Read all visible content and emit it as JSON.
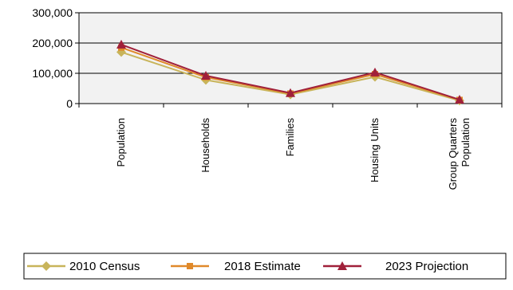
{
  "chart_data": {
    "type": "line",
    "title": "",
    "xlabel": "",
    "ylabel": "",
    "ylim": [
      0,
      300000
    ],
    "yticks": [
      0,
      100000,
      200000,
      300000
    ],
    "ytick_labels": [
      "0",
      "100,000",
      "200,000",
      "300,000"
    ],
    "grid": true,
    "legend_position": "bottom",
    "categories": [
      [
        "Population"
      ],
      [
        "Households"
      ],
      [
        "Families"
      ],
      [
        "Housing Units"
      ],
      [
        "Group Quarters",
        "Population"
      ]
    ],
    "series": [
      {
        "name": "2010 Census",
        "color": "#c8b45a",
        "marker": "diamond",
        "values": [
          170000,
          78000,
          30000,
          88000,
          10000
        ]
      },
      {
        "name": "2018 Estimate",
        "color": "#e0892a",
        "marker": "square",
        "values": [
          185000,
          87000,
          33000,
          97000,
          12000
        ]
      },
      {
        "name": "2023 Projection",
        "color": "#a0203a",
        "marker": "triangle",
        "values": [
          195000,
          92000,
          35000,
          103000,
          13000
        ]
      }
    ]
  }
}
